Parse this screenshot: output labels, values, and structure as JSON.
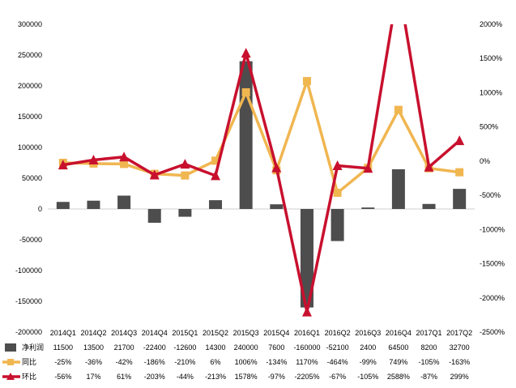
{
  "chart_data": {
    "type": "bar+line",
    "categories": [
      "2014Q1",
      "2014Q2",
      "2014Q3",
      "2014Q4",
      "2015Q1",
      "2015Q2",
      "2015Q3",
      "2015Q4",
      "2016Q1",
      "2016Q2",
      "2016Q3",
      "2016Q4",
      "2017Q1",
      "2017Q2"
    ],
    "left_axis": {
      "min": -200000,
      "max": 300000,
      "ticks": [
        "-200000",
        "-150000",
        "-100000",
        "-50000",
        "0",
        "50000",
        "100000",
        "150000",
        "200000",
        "250000",
        "300000"
      ]
    },
    "right_axis": {
      "min": -25,
      "max": 20,
      "unit": "%",
      "ticks": [
        "-2500%",
        "-2000%",
        "-1500%",
        "-1000%",
        "-500%",
        "0%",
        "500%",
        "1000%",
        "1500%",
        "2000%"
      ]
    },
    "grid": false,
    "legend_placement": "table-bottom",
    "series": [
      {
        "name": "净利润",
        "kind": "bar",
        "axis": "left",
        "color": "#4d4d4d",
        "values": [
          11500,
          13500,
          21700,
          -22400,
          -12600,
          14300,
          240000,
          7600,
          -160000,
          -52100,
          2400,
          64500,
          8200,
          32700
        ],
        "labels": [
          "11500",
          "13500",
          "21700",
          "-22400",
          "-12600",
          "14300",
          "240000",
          "7600",
          "-160000",
          "-52100",
          "2400",
          "64500",
          "8200",
          "32700"
        ]
      },
      {
        "name": "同比",
        "kind": "line",
        "axis": "right",
        "color": "#f0b650",
        "marker": "square",
        "values": [
          -0.25,
          -0.36,
          -0.42,
          -1.86,
          -2.1,
          0.06,
          10.06,
          -1.34,
          11.7,
          -4.64,
          -0.99,
          7.49,
          -1.05,
          -1.63
        ],
        "labels": [
          "-25%",
          "-36%",
          "-42%",
          "-186%",
          "-210%",
          "6%",
          "1006%",
          "-134%",
          "1170%",
          "-464%",
          "-99%",
          "749%",
          "-105%",
          "-163%"
        ]
      },
      {
        "name": "环比",
        "kind": "line",
        "axis": "right",
        "color": "#c8102e",
        "marker": "triangle",
        "values": [
          -0.56,
          0.17,
          0.61,
          -2.03,
          -0.44,
          -2.13,
          15.78,
          -0.97,
          -22.05,
          -0.67,
          -1.05,
          25.88,
          -0.87,
          2.99
        ],
        "labels": [
          "-56%",
          "17%",
          "61%",
          "-203%",
          "-44%",
          "-213%",
          "1578%",
          "-97%",
          "-2205%",
          "-67%",
          "-105%",
          "2588%",
          "-87%",
          "299%"
        ]
      }
    ]
  }
}
